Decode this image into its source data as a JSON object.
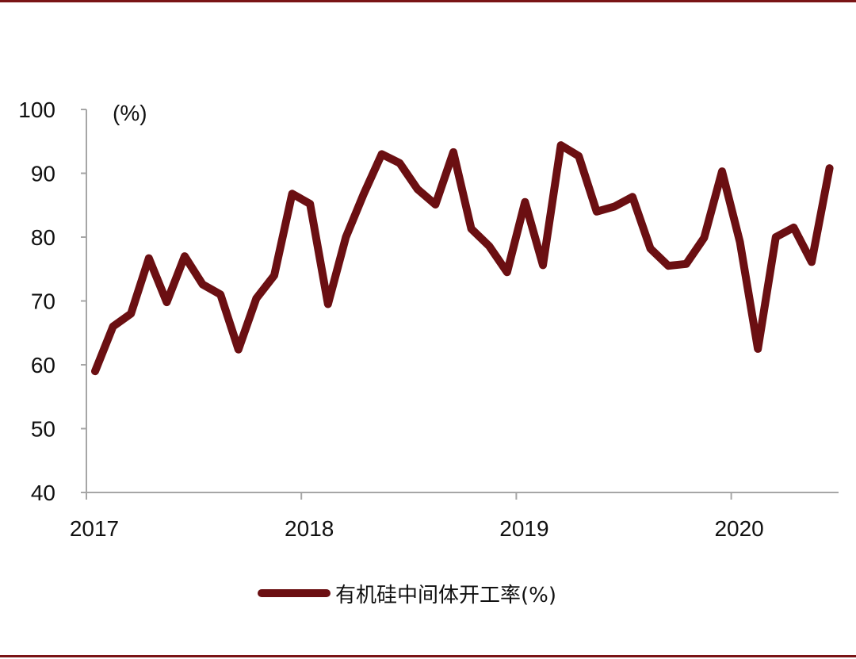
{
  "chart_data": {
    "type": "line",
    "unit_label": "(%)",
    "ylim": [
      40,
      100
    ],
    "yticks": [
      40,
      50,
      60,
      70,
      80,
      90,
      100
    ],
    "xticks": [
      "2017",
      "2018",
      "2019",
      "2020"
    ],
    "grid": false,
    "legend_position": "bottom-center",
    "series": [
      {
        "name": "有机硅中间体开工率(%)",
        "color": "#6b0f12",
        "x": [
          "2017-01",
          "2017-02",
          "2017-03",
          "2017-04",
          "2017-05",
          "2017-06",
          "2017-07",
          "2017-08",
          "2017-09",
          "2017-10",
          "2017-11",
          "2017-12",
          "2018-01",
          "2018-02",
          "2018-03",
          "2018-04",
          "2018-05",
          "2018-06",
          "2018-07",
          "2018-08",
          "2018-09",
          "2018-10",
          "2018-11",
          "2018-12",
          "2019-01",
          "2019-02",
          "2019-03",
          "2019-04",
          "2019-05",
          "2019-06",
          "2019-07",
          "2019-08",
          "2019-09",
          "2019-10",
          "2019-11",
          "2019-12",
          "2020-01",
          "2020-02",
          "2020-03",
          "2020-04",
          "2020-05",
          "2020-06"
        ],
        "values": [
          59,
          66,
          68,
          76.7,
          69.8,
          77,
          72.6,
          71,
          62.4,
          70.4,
          74,
          86.8,
          85.2,
          69.5,
          80,
          86.8,
          93,
          91.6,
          87.5,
          85.1,
          93.3,
          81.3,
          78.6,
          74.5,
          85.5,
          75.6,
          94.4,
          92.7,
          84,
          84.8,
          86.3,
          78.2,
          75.5,
          75.8,
          79.9,
          90.3,
          79.2,
          62.5,
          80,
          81.5,
          76.1,
          90.8
        ]
      }
    ]
  }
}
